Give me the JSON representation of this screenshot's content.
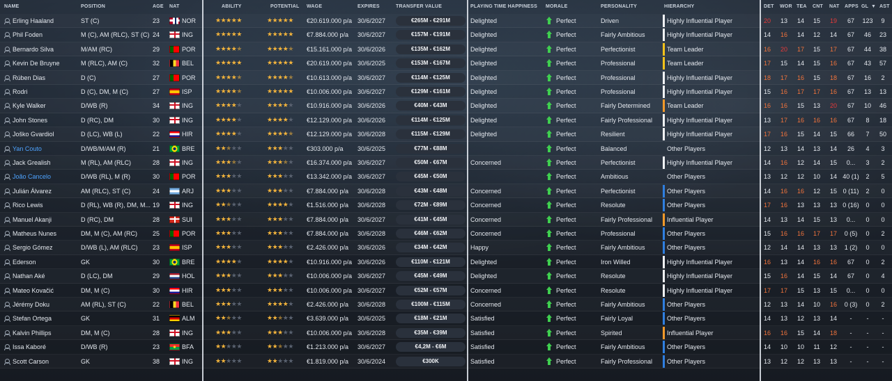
{
  "headers": {
    "name": "NAME",
    "position": "POSITION",
    "age": "AGE",
    "nat": "NAT",
    "ability": "ABILITY",
    "potential": "POTENTIAL",
    "wage": "WAGE",
    "expires": "EXPIRES",
    "transfer_value": "TRANSFER VALUE",
    "happiness": "PLAYING TIME HAPPINESS",
    "morale": "MORALE",
    "personality": "PERSONALITY",
    "hierarchy": "HIERARCHY",
    "det": "DET",
    "wor": "WOR",
    "tea": "TEA",
    "cnt": "CNT",
    "nat2": "NAT",
    "apps": "APPS",
    "gls": "GL",
    "sort": "▼",
    "ast": "AST"
  },
  "colors": {
    "accent_blue": "#4ea3ff",
    "star": "#f2b33c",
    "morale_up": "#3fcf4f",
    "hier_white": "#f0f2f5",
    "hier_yellow": "#f5c21b",
    "hier_orange": "#f59a2a",
    "hier_blue": "#2f7fe0",
    "attr_orange": "#f0733c",
    "attr_red": "#e53a3a"
  },
  "players": [
    {
      "name": "Erling Haaland",
      "pos": "ST (C)",
      "age": "23",
      "flag": "nor",
      "nat": "NOR",
      "ab": 5,
      "pot": 5,
      "wage": "€20.619.000 p/a",
      "exp": "30/6/2027",
      "tv": "€265M - €291M",
      "hap": "Delighted",
      "mor": "Perfect",
      "pers": "Driven",
      "hier": "Highly Influential Player",
      "hc": "white",
      "det": [
        "20",
        "r"
      ],
      "wor": [
        "13",
        "w"
      ],
      "tea": [
        "14",
        "w"
      ],
      "cnt": [
        "15",
        "w"
      ],
      "nat2": [
        "19",
        "r"
      ],
      "apps": "67",
      "gls": "123",
      "ast": "9",
      "blue": false
    },
    {
      "name": "Phil Foden",
      "pos": "M (C), AM (RLC), ST (C)",
      "age": "24",
      "flag": "eng",
      "nat": "ING",
      "ab": 5,
      "pot": 5,
      "wage": "€7.884.000 p/a",
      "exp": "30/6/2027",
      "tv": "€157M - €191M",
      "hap": "Delighted",
      "mor": "Perfect",
      "pers": "Fairly Ambitious",
      "hier": "Highly Influential Player",
      "hc": "white",
      "det": [
        "14",
        "w"
      ],
      "wor": [
        "16",
        "o"
      ],
      "tea": [
        "14",
        "w"
      ],
      "cnt": [
        "12",
        "w"
      ],
      "nat2": [
        "14",
        "w"
      ],
      "apps": "67",
      "gls": "46",
      "ast": "23",
      "blue": false
    },
    {
      "name": "Bernardo Silva",
      "pos": "M/AM (RC)",
      "age": "29",
      "flag": "por",
      "nat": "POR",
      "ab": 4.5,
      "pot": 4.5,
      "wage": "€15.161.000 p/a",
      "exp": "30/6/2026",
      "tv": "€135M - €162M",
      "hap": "Delighted",
      "mor": "Perfect",
      "pers": "Perfectionist",
      "hier": "Team Leader",
      "hc": "yellow",
      "det": [
        "16",
        "o"
      ],
      "wor": [
        "20",
        "r"
      ],
      "tea": [
        "17",
        "o"
      ],
      "cnt": [
        "15",
        "w"
      ],
      "nat2": [
        "17",
        "o"
      ],
      "apps": "67",
      "gls": "44",
      "ast": "38",
      "blue": false
    },
    {
      "name": "Kevin De Bruyne",
      "pos": "M (RLC), AM (C)",
      "age": "32",
      "flag": "bel",
      "nat": "BEL",
      "ab": 5,
      "pot": 5,
      "wage": "€20.619.000 p/a",
      "exp": "30/6/2025",
      "tv": "€153M - €167M",
      "hap": "Delighted",
      "mor": "Perfect",
      "pers": "Professional",
      "hier": "Team Leader",
      "hc": "yellow",
      "det": [
        "17",
        "o"
      ],
      "wor": [
        "15",
        "w"
      ],
      "tea": [
        "14",
        "w"
      ],
      "cnt": [
        "15",
        "w"
      ],
      "nat2": [
        "16",
        "o"
      ],
      "apps": "67",
      "gls": "43",
      "ast": "57",
      "blue": false
    },
    {
      "name": "Rúben Dias",
      "pos": "D (C)",
      "age": "27",
      "flag": "por",
      "nat": "POR",
      "ab": 4.5,
      "pot": 4.5,
      "wage": "€10.613.000 p/a",
      "exp": "30/6/2027",
      "tv": "€114M - €125M",
      "hap": "Delighted",
      "mor": "Perfect",
      "pers": "Professional",
      "hier": "Highly Influential Player",
      "hc": "white",
      "det": [
        "18",
        "o"
      ],
      "wor": [
        "17",
        "o"
      ],
      "tea": [
        "16",
        "o"
      ],
      "cnt": [
        "15",
        "w"
      ],
      "nat2": [
        "18",
        "o"
      ],
      "apps": "67",
      "gls": "16",
      "ast": "2",
      "blue": false
    },
    {
      "name": "Rodri",
      "pos": "D (C), DM, M (C)",
      "age": "27",
      "flag": "esp",
      "nat": "ISP",
      "ab": 4.5,
      "pot": 5,
      "wage": "€10.006.000 p/a",
      "exp": "30/6/2027",
      "tv": "€129M - €161M",
      "hap": "Delighted",
      "mor": "Perfect",
      "pers": "Professional",
      "hier": "Highly Influential Player",
      "hc": "white",
      "det": [
        "15",
        "w"
      ],
      "wor": [
        "16",
        "o"
      ],
      "tea": [
        "17",
        "o"
      ],
      "cnt": [
        "17",
        "o"
      ],
      "nat2": [
        "16",
        "o"
      ],
      "apps": "67",
      "gls": "13",
      "ast": "13",
      "blue": false
    },
    {
      "name": "Kyle Walker",
      "pos": "D/WB (R)",
      "age": "34",
      "flag": "eng",
      "nat": "ING",
      "ab": 4,
      "pot": 4,
      "wage": "€10.916.000 p/a",
      "exp": "30/6/2026",
      "tv": "€40M - €43M",
      "hap": "Delighted",
      "mor": "Perfect",
      "pers": "Fairly Determined",
      "hier": "Team Leader",
      "hc": "orange",
      "det": [
        "16",
        "o"
      ],
      "wor": [
        "16",
        "o"
      ],
      "tea": [
        "15",
        "w"
      ],
      "cnt": [
        "13",
        "w"
      ],
      "nat2": [
        "20",
        "r"
      ],
      "apps": "67",
      "gls": "10",
      "ast": "46",
      "blue": false
    },
    {
      "name": "John Stones",
      "pos": "D (RC), DM",
      "age": "30",
      "flag": "eng",
      "nat": "ING",
      "ab": 4,
      "pot": 4,
      "wage": "€12.129.000 p/a",
      "exp": "30/6/2026",
      "tv": "€114M - €125M",
      "hap": "Delighted",
      "mor": "Perfect",
      "pers": "Fairly Professional",
      "hier": "Highly Influential Player",
      "hc": "white",
      "det": [
        "13",
        "w"
      ],
      "wor": [
        "17",
        "o"
      ],
      "tea": [
        "16",
        "o"
      ],
      "cnt": [
        "16",
        "o"
      ],
      "nat2": [
        "16",
        "o"
      ],
      "apps": "67",
      "gls": "8",
      "ast": "18",
      "blue": false
    },
    {
      "name": "Joško Gvardiol",
      "pos": "D (LC), WB (L)",
      "age": "22",
      "flag": "cro",
      "nat": "HIR",
      "ab": 4,
      "pot": 4.5,
      "wage": "€12.129.000 p/a",
      "exp": "30/6/2028",
      "tv": "€115M - €129M",
      "hap": "Delighted",
      "mor": "Perfect",
      "pers": "Resilient",
      "hier": "Highly Influential Player",
      "hc": "white",
      "det": [
        "17",
        "o"
      ],
      "wor": [
        "16",
        "o"
      ],
      "tea": [
        "15",
        "w"
      ],
      "cnt": [
        "14",
        "w"
      ],
      "nat2": [
        "15",
        "w"
      ],
      "apps": "66",
      "gls": "7",
      "ast": "50",
      "blue": false
    },
    {
      "name": "Yan Couto",
      "pos": "D/WB/M/AM (R)",
      "age": "21",
      "flag": "bra",
      "nat": "BRE",
      "ab": 2.5,
      "pot": 3,
      "wage": "€303.000 p/a",
      "exp": "30/6/2025",
      "tv": "€77M - €88M",
      "hap": "",
      "mor": "Perfect",
      "pers": "Balanced",
      "hier": "Other Players",
      "hc": "none",
      "det": [
        "12",
        "w"
      ],
      "wor": [
        "13",
        "w"
      ],
      "tea": [
        "14",
        "w"
      ],
      "cnt": [
        "13",
        "w"
      ],
      "nat2": [
        "14",
        "w"
      ],
      "apps": "26",
      "gls": "4",
      "ast": "3",
      "blue": true
    },
    {
      "name": "Jack Grealish",
      "pos": "M (RL), AM (RLC)",
      "age": "28",
      "flag": "eng",
      "nat": "ING",
      "ab": 3.5,
      "pot": 3.5,
      "wage": "€16.374.000 p/a",
      "exp": "30/6/2027",
      "tv": "€50M - €67M",
      "hap": "Concerned",
      "mor": "Perfect",
      "pers": "Perfectionist",
      "hier": "Highly Influential Player",
      "hc": "white",
      "det": [
        "14",
        "w"
      ],
      "wor": [
        "16",
        "o"
      ],
      "tea": [
        "12",
        "w"
      ],
      "cnt": [
        "14",
        "w"
      ],
      "nat2": [
        "15",
        "w"
      ],
      "apps": "0...",
      "gls": "3",
      "ast": "2",
      "blue": false
    },
    {
      "name": "João Cancelo",
      "pos": "D/WB (RL), M (R)",
      "age": "30",
      "flag": "por",
      "nat": "POR",
      "ab": 3,
      "pot": 3,
      "wage": "€13.342.000 p/a",
      "exp": "30/6/2027",
      "tv": "€45M - €50M",
      "hap": "",
      "mor": "Perfect",
      "pers": "Ambitious",
      "hier": "Other Players",
      "hc": "none",
      "det": [
        "13",
        "w"
      ],
      "wor": [
        "12",
        "w"
      ],
      "tea": [
        "12",
        "w"
      ],
      "cnt": [
        "10",
        "w"
      ],
      "nat2": [
        "14",
        "w"
      ],
      "apps": "40 (1)",
      "gls": "2",
      "ast": "5",
      "blue": true
    },
    {
      "name": "Julián Álvarez",
      "pos": "AM (RLC), ST (C)",
      "age": "24",
      "flag": "arg",
      "nat": "ARJ",
      "ab": 3,
      "pot": 3,
      "wage": "€7.884.000 p/a",
      "exp": "30/6/2028",
      "tv": "€43M - €48M",
      "hap": "Concerned",
      "mor": "Perfect",
      "pers": "Perfectionist",
      "hier": "Other Players",
      "hc": "blue",
      "det": [
        "14",
        "w"
      ],
      "wor": [
        "16",
        "o"
      ],
      "tea": [
        "16",
        "o"
      ],
      "cnt": [
        "12",
        "w"
      ],
      "nat2": [
        "15",
        "w"
      ],
      "apps": "0 (11)",
      "gls": "2",
      "ast": "0",
      "blue": false
    },
    {
      "name": "Rico Lewis",
      "pos": "D (RL), WB (R), DM, M...",
      "age": "19",
      "flag": "eng",
      "nat": "ING",
      "ab": 2.5,
      "pot": 4,
      "wage": "€1.516.000 p/a",
      "exp": "30/6/2028",
      "tv": "€72M - €89M",
      "hap": "Concerned",
      "mor": "Perfect",
      "pers": "Resolute",
      "hier": "Other Players",
      "hc": "blue",
      "det": [
        "17",
        "o"
      ],
      "wor": [
        "16",
        "o"
      ],
      "tea": [
        "13",
        "w"
      ],
      "cnt": [
        "13",
        "w"
      ],
      "nat2": [
        "13",
        "w"
      ],
      "apps": "0 (16)",
      "gls": "0",
      "ast": "0",
      "blue": false
    },
    {
      "name": "Manuel Akanji",
      "pos": "D (RC), DM",
      "age": "28",
      "flag": "sui",
      "nat": "SUI",
      "ab": 3,
      "pot": 3,
      "wage": "€7.884.000 p/a",
      "exp": "30/6/2027",
      "tv": "€41M - €45M",
      "hap": "Concerned",
      "mor": "Perfect",
      "pers": "Fairly Professional",
      "hier": "Influential Player",
      "hc": "orange",
      "det": [
        "14",
        "w"
      ],
      "wor": [
        "13",
        "w"
      ],
      "tea": [
        "14",
        "w"
      ],
      "cnt": [
        "15",
        "w"
      ],
      "nat2": [
        "13",
        "w"
      ],
      "apps": "0...",
      "gls": "0",
      "ast": "0",
      "blue": false
    },
    {
      "name": "Matheus Nunes",
      "pos": "DM, M (C), AM (RC)",
      "age": "25",
      "flag": "por",
      "nat": "POR",
      "ab": 3,
      "pot": 3,
      "wage": "€7.884.000 p/a",
      "exp": "30/6/2028",
      "tv": "€46M - €62M",
      "hap": "Concerned",
      "mor": "Perfect",
      "pers": "Professional",
      "hier": "Other Players",
      "hc": "blue",
      "det": [
        "15",
        "w"
      ],
      "wor": [
        "16",
        "o"
      ],
      "tea": [
        "16",
        "o"
      ],
      "cnt": [
        "17",
        "o"
      ],
      "nat2": [
        "17",
        "o"
      ],
      "apps": "0 (5)",
      "gls": "0",
      "ast": "2",
      "blue": false
    },
    {
      "name": "Sergio Gómez",
      "pos": "D/WB (L), AM (RLC)",
      "age": "23",
      "flag": "esp",
      "nat": "ISP",
      "ab": 3,
      "pot": 3,
      "wage": "€2.426.000 p/a",
      "exp": "30/6/2026",
      "tv": "€34M - €42M",
      "hap": "Happy",
      "mor": "Perfect",
      "pers": "Fairly Ambitious",
      "hier": "Other Players",
      "hc": "blue",
      "det": [
        "12",
        "w"
      ],
      "wor": [
        "14",
        "w"
      ],
      "tea": [
        "14",
        "w"
      ],
      "cnt": [
        "13",
        "w"
      ],
      "nat2": [
        "13",
        "w"
      ],
      "apps": "1 (2)",
      "gls": "0",
      "ast": "0",
      "blue": false
    },
    {
      "name": "Ederson",
      "pos": "GK",
      "age": "30",
      "flag": "bra",
      "nat": "BRE",
      "ab": 4,
      "pot": 4,
      "wage": "€10.916.000 p/a",
      "exp": "30/6/2026",
      "tv": "€110M - €121M",
      "hap": "Delighted",
      "mor": "Perfect",
      "pers": "Iron Willed",
      "hier": "Highly Influential Player",
      "hc": "white",
      "det": [
        "16",
        "o"
      ],
      "wor": [
        "13",
        "w"
      ],
      "tea": [
        "14",
        "w"
      ],
      "cnt": [
        "16",
        "o"
      ],
      "nat2": [
        "16",
        "o"
      ],
      "apps": "67",
      "gls": "0",
      "ast": "2",
      "blue": false
    },
    {
      "name": "Nathan Aké",
      "pos": "D (LC), DM",
      "age": "29",
      "flag": "ned",
      "nat": "HOL",
      "ab": 3,
      "pot": 3,
      "wage": "€10.006.000 p/a",
      "exp": "30/6/2027",
      "tv": "€45M - €49M",
      "hap": "Delighted",
      "mor": "Perfect",
      "pers": "Resolute",
      "hier": "Highly Influential Player",
      "hc": "white",
      "det": [
        "15",
        "w"
      ],
      "wor": [
        "16",
        "o"
      ],
      "tea": [
        "14",
        "w"
      ],
      "cnt": [
        "15",
        "w"
      ],
      "nat2": [
        "14",
        "w"
      ],
      "apps": "67",
      "gls": "0",
      "ast": "4",
      "blue": false
    },
    {
      "name": "Mateo Kovačić",
      "pos": "DM, M (C)",
      "age": "30",
      "flag": "cro",
      "nat": "HIR",
      "ab": 3,
      "pot": 3,
      "wage": "€10.006.000 p/a",
      "exp": "30/6/2027",
      "tv": "€52M - €57M",
      "hap": "Concerned",
      "mor": "Perfect",
      "pers": "Resolute",
      "hier": "Highly Influential Player",
      "hc": "white",
      "det": [
        "17",
        "o"
      ],
      "wor": [
        "17",
        "o"
      ],
      "tea": [
        "15",
        "w"
      ],
      "cnt": [
        "13",
        "w"
      ],
      "nat2": [
        "15",
        "w"
      ],
      "apps": "0...",
      "gls": "0",
      "ast": "0",
      "blue": false
    },
    {
      "name": "Jérémy Doku",
      "pos": "AM (RL), ST (C)",
      "age": "22",
      "flag": "bel",
      "nat": "BEL",
      "ab": 3,
      "pot": 4,
      "wage": "€2.426.000 p/a",
      "exp": "30/6/2028",
      "tv": "€100M - €115M",
      "hap": "Concerned",
      "mor": "Perfect",
      "pers": "Fairly Ambitious",
      "hier": "Other Players",
      "hc": "blue",
      "det": [
        "12",
        "w"
      ],
      "wor": [
        "13",
        "w"
      ],
      "tea": [
        "14",
        "w"
      ],
      "cnt": [
        "10",
        "w"
      ],
      "nat2": [
        "16",
        "o"
      ],
      "apps": "0 (3)",
      "gls": "0",
      "ast": "2",
      "blue": false
    },
    {
      "name": "Stefan Ortega",
      "pos": "GK",
      "age": "31",
      "flag": "ger",
      "nat": "ALM",
      "ab": 2.5,
      "pot": 2.5,
      "wage": "€3.639.000 p/a",
      "exp": "30/6/2025",
      "tv": "€18M - €21M",
      "hap": "Satisfied",
      "mor": "Perfect",
      "pers": "Fairly Loyal",
      "hier": "Other Players",
      "hc": "blue",
      "det": [
        "14",
        "w"
      ],
      "wor": [
        "13",
        "w"
      ],
      "tea": [
        "12",
        "w"
      ],
      "cnt": [
        "13",
        "w"
      ],
      "nat2": [
        "14",
        "w"
      ],
      "apps": "-",
      "gls": "-",
      "ast": "-",
      "blue": false
    },
    {
      "name": "Kalvin Phillips",
      "pos": "DM, M (C)",
      "age": "28",
      "flag": "eng",
      "nat": "ING",
      "ab": 3,
      "pot": 3,
      "wage": "€10.006.000 p/a",
      "exp": "30/6/2028",
      "tv": "€35M - €39M",
      "hap": "Satisfied",
      "mor": "Perfect",
      "pers": "Spirited",
      "hier": "Influential Player",
      "hc": "orange",
      "det": [
        "16",
        "o"
      ],
      "wor": [
        "16",
        "o"
      ],
      "tea": [
        "15",
        "w"
      ],
      "cnt": [
        "14",
        "w"
      ],
      "nat2": [
        "18",
        "o"
      ],
      "apps": "-",
      "gls": "-",
      "ast": "-",
      "blue": false
    },
    {
      "name": "Issa Kaboré",
      "pos": "D/WB (R)",
      "age": "23",
      "flag": "bfa",
      "nat": "BFA",
      "ab": 2,
      "pot": 2.5,
      "wage": "€1.213.000 p/a",
      "exp": "30/6/2027",
      "tv": "€4,2M - €6M",
      "hap": "Satisfied",
      "mor": "Perfect",
      "pers": "Fairly Ambitious",
      "hier": "Other Players",
      "hc": "blue",
      "det": [
        "14",
        "w"
      ],
      "wor": [
        "10",
        "w"
      ],
      "tea": [
        "10",
        "w"
      ],
      "cnt": [
        "11",
        "w"
      ],
      "nat2": [
        "12",
        "w"
      ],
      "apps": "-",
      "gls": "-",
      "ast": "-",
      "blue": false
    },
    {
      "name": "Scott Carson",
      "pos": "GK",
      "age": "38",
      "flag": "eng",
      "nat": "ING",
      "ab": 2,
      "pot": 2,
      "wage": "€1.819.000 p/a",
      "exp": "30/6/2024",
      "tv": "€300K",
      "hap": "Satisfied",
      "mor": "Perfect",
      "pers": "Fairly Professional",
      "hier": "Other Players",
      "hc": "blue",
      "det": [
        "13",
        "w"
      ],
      "wor": [
        "12",
        "w"
      ],
      "tea": [
        "12",
        "w"
      ],
      "cnt": [
        "13",
        "w"
      ],
      "nat2": [
        "13",
        "w"
      ],
      "apps": "-",
      "gls": "-",
      "ast": "-",
      "blue": false
    }
  ]
}
